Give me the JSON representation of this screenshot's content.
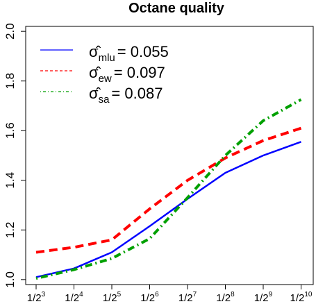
{
  "chart_data": {
    "type": "line",
    "title": "Octane quality",
    "x_tick_base": "1/2",
    "x_tick_exponents": [
      "3",
      "4",
      "5",
      "6",
      "7",
      "8",
      "9",
      "10"
    ],
    "x": [
      "1/2^3",
      "1/2^4",
      "1/2^5",
      "1/2^6",
      "1/2^7",
      "1/2^8",
      "1/2^9",
      "1/2^10"
    ],
    "ylim": [
      0.98,
      2.02
    ],
    "y_ticks": [
      "1.0",
      "1.2",
      "1.4",
      "1.6",
      "1.8",
      "2.0"
    ],
    "grid": false,
    "legend_position": "top-left",
    "series": [
      {
        "legend_symbol": "σ̂",
        "legend_subscript": "mlu",
        "legend_value": "= 0.055",
        "color": "#0000ff",
        "line_style": "solid",
        "values": [
          1.01,
          1.045,
          1.11,
          1.215,
          1.325,
          1.43,
          1.5,
          1.555
        ]
      },
      {
        "legend_symbol": "σ̂",
        "legend_subscript": "ew",
        "legend_value": "= 0.097",
        "color": "#ff0000",
        "line_style": "dashed",
        "values": [
          1.11,
          1.13,
          1.16,
          1.285,
          1.4,
          1.49,
          1.56,
          1.61
        ]
      },
      {
        "legend_symbol": "σ̂",
        "legend_subscript": "sa",
        "legend_value": "= 0.087",
        "color": "#00a000",
        "line_style": "dotdash",
        "values": [
          1.005,
          1.04,
          1.085,
          1.165,
          1.33,
          1.5,
          1.64,
          1.725
        ]
      }
    ]
  }
}
